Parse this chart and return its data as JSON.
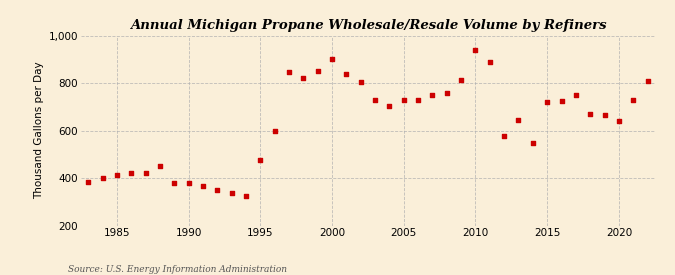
{
  "title": "Annual Michigan Propane Wholesale/Resale Volume by Refiners",
  "ylabel": "Thousand Gallons per Day",
  "source": "Source: U.S. Energy Information Administration",
  "background_color": "#faefd9",
  "marker_color": "#cc0000",
  "years": [
    1983,
    1984,
    1985,
    1986,
    1987,
    1988,
    1989,
    1990,
    1991,
    1992,
    1993,
    1994,
    1995,
    1996,
    1997,
    1998,
    1999,
    2000,
    2001,
    2002,
    2003,
    2004,
    2005,
    2006,
    2007,
    2008,
    2009,
    2010,
    2011,
    2012,
    2013,
    2014,
    2015,
    2016,
    2017,
    2018,
    2019,
    2020,
    2021,
    2022
  ],
  "values": [
    383,
    400,
    415,
    420,
    420,
    450,
    380,
    378,
    365,
    350,
    335,
    325,
    475,
    600,
    848,
    820,
    850,
    900,
    840,
    803,
    730,
    704,
    730,
    730,
    750,
    760,
    812,
    940,
    890,
    578,
    645,
    549,
    720,
    725,
    752,
    670,
    665,
    642,
    730,
    810
  ],
  "xlim": [
    1982.5,
    2022.5
  ],
  "ylim": [
    200,
    1000
  ],
  "yticks": [
    200,
    400,
    600,
    800,
    1000
  ],
  "ytick_labels": [
    "200",
    "400",
    "600",
    "800",
    "1,000"
  ],
  "xticks": [
    1985,
    1990,
    1995,
    2000,
    2005,
    2010,
    2015,
    2020
  ],
  "grid_color": "#b0b0b0",
  "grid_style": "--",
  "grid_alpha": 0.8,
  "title_fontsize": 9.5,
  "axis_fontsize": 7.5,
  "source_fontsize": 6.5
}
